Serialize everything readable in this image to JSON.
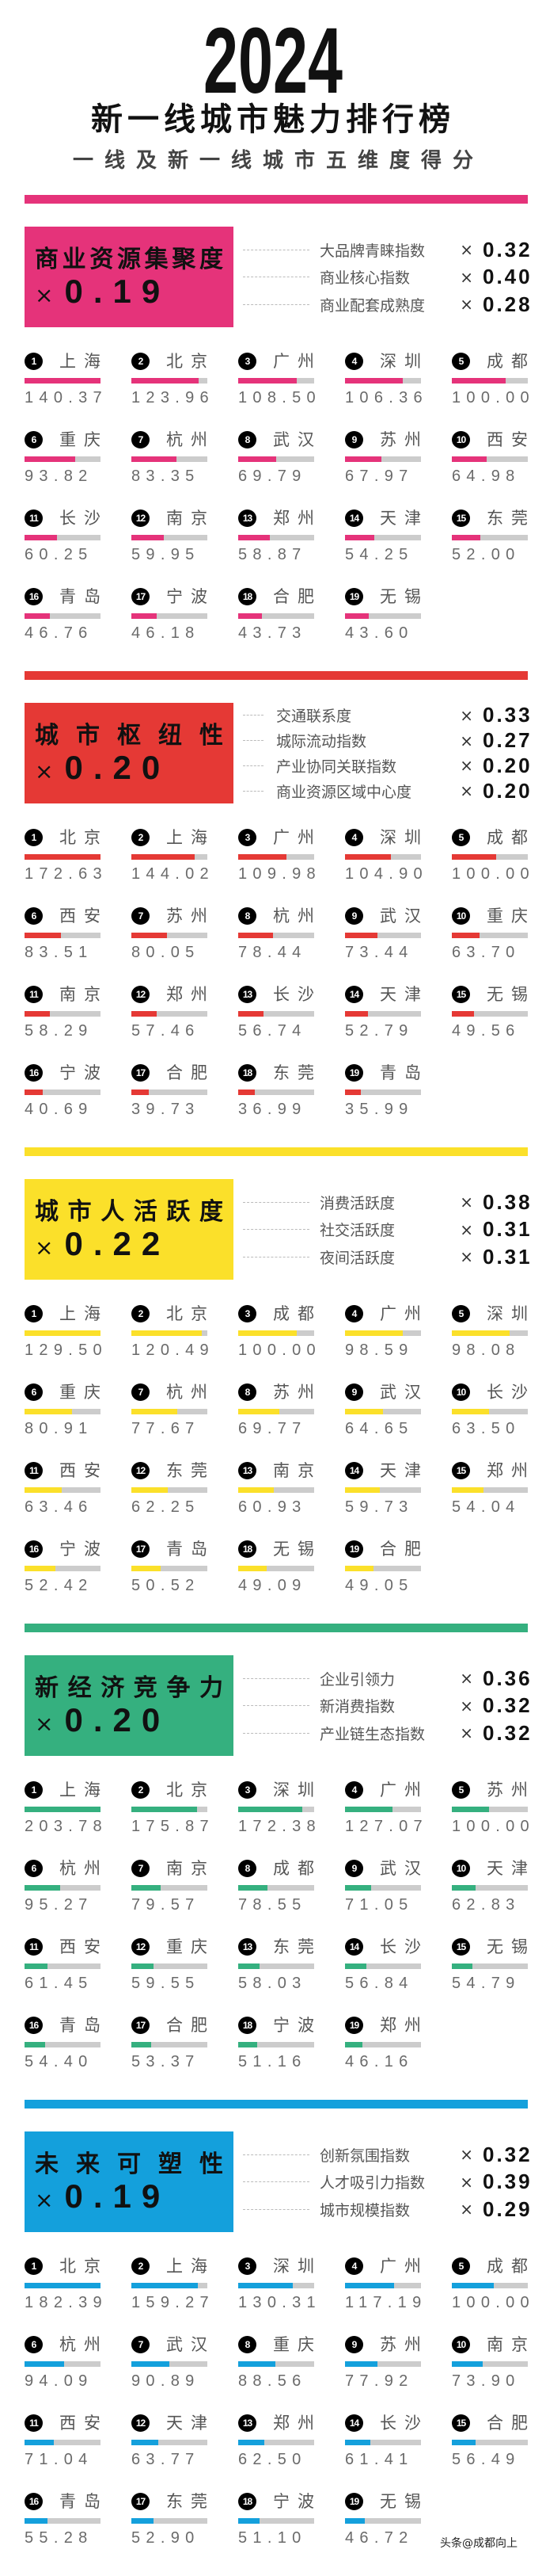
{
  "header": {
    "year": "2024",
    "title": "新一线城市魅力排行榜",
    "subtitle": "一线及新一线城市五维度得分"
  },
  "sections": [
    {
      "title": "商业资源集聚度",
      "weight": "0.19",
      "color": "#E5337A",
      "items": [
        {
          "label": "大品牌青睐指数",
          "weight": "0.32"
        },
        {
          "label": "商业核心指数",
          "weight": "0.40"
        },
        {
          "label": "商业配套成熟度",
          "weight": "0.28"
        }
      ],
      "cities": [
        {
          "rank": "1",
          "name": "上海",
          "score": "140.37"
        },
        {
          "rank": "2",
          "name": "北京",
          "score": "123.96"
        },
        {
          "rank": "3",
          "name": "广州",
          "score": "108.50"
        },
        {
          "rank": "4",
          "name": "深圳",
          "score": "106.36"
        },
        {
          "rank": "5",
          "name": "成都",
          "score": "100.00"
        },
        {
          "rank": "6",
          "name": "重庆",
          "score": "93.82"
        },
        {
          "rank": "7",
          "name": "杭州",
          "score": "83.35"
        },
        {
          "rank": "8",
          "name": "武汉",
          "score": "69.79"
        },
        {
          "rank": "9",
          "name": "苏州",
          "score": "67.97"
        },
        {
          "rank": "10",
          "name": "西安",
          "score": "64.98"
        },
        {
          "rank": "11",
          "name": "长沙",
          "score": "60.25"
        },
        {
          "rank": "12",
          "name": "南京",
          "score": "59.95"
        },
        {
          "rank": "13",
          "name": "郑州",
          "score": "58.87"
        },
        {
          "rank": "14",
          "name": "天津",
          "score": "54.25"
        },
        {
          "rank": "15",
          "name": "东莞",
          "score": "52.00"
        },
        {
          "rank": "16",
          "name": "青岛",
          "score": "46.76"
        },
        {
          "rank": "17",
          "name": "宁波",
          "score": "46.18"
        },
        {
          "rank": "18",
          "name": "合肥",
          "score": "43.73"
        },
        {
          "rank": "19",
          "name": "无锡",
          "score": "43.60"
        }
      ]
    },
    {
      "title": "城市枢纽性",
      "weight": "0.20",
      "color": "#E53935",
      "items": [
        {
          "label": "交通联系度",
          "weight": "0.33"
        },
        {
          "label": "城际流动指数",
          "weight": "0.27"
        },
        {
          "label": "产业协同关联指数",
          "weight": "0.20"
        },
        {
          "label": "商业资源区域中心度",
          "weight": "0.20"
        }
      ],
      "cities": [
        {
          "rank": "1",
          "name": "北京",
          "score": "172.63"
        },
        {
          "rank": "2",
          "name": "上海",
          "score": "144.02"
        },
        {
          "rank": "3",
          "name": "广州",
          "score": "109.98"
        },
        {
          "rank": "4",
          "name": "深圳",
          "score": "104.90"
        },
        {
          "rank": "5",
          "name": "成都",
          "score": "100.00"
        },
        {
          "rank": "6",
          "name": "西安",
          "score": "83.51"
        },
        {
          "rank": "7",
          "name": "苏州",
          "score": "80.05"
        },
        {
          "rank": "8",
          "name": "杭州",
          "score": "78.44"
        },
        {
          "rank": "9",
          "name": "武汉",
          "score": "73.44"
        },
        {
          "rank": "10",
          "name": "重庆",
          "score": "63.70"
        },
        {
          "rank": "11",
          "name": "南京",
          "score": "58.29"
        },
        {
          "rank": "12",
          "name": "郑州",
          "score": "57.46"
        },
        {
          "rank": "13",
          "name": "长沙",
          "score": "56.74"
        },
        {
          "rank": "14",
          "name": "天津",
          "score": "52.79"
        },
        {
          "rank": "15",
          "name": "无锡",
          "score": "49.56"
        },
        {
          "rank": "16",
          "name": "宁波",
          "score": "40.69"
        },
        {
          "rank": "17",
          "name": "合肥",
          "score": "39.73"
        },
        {
          "rank": "18",
          "name": "东莞",
          "score": "36.99"
        },
        {
          "rank": "19",
          "name": "青岛",
          "score": "35.99"
        }
      ]
    },
    {
      "title": "城市人活跃度",
      "weight": "0.22",
      "color": "#FBE02A",
      "items": [
        {
          "label": "消费活跃度",
          "weight": "0.38"
        },
        {
          "label": "社交活跃度",
          "weight": "0.31"
        },
        {
          "label": "夜间活跃度",
          "weight": "0.31"
        }
      ],
      "cities": [
        {
          "rank": "1",
          "name": "上海",
          "score": "129.50"
        },
        {
          "rank": "2",
          "name": "北京",
          "score": "120.49"
        },
        {
          "rank": "3",
          "name": "成都",
          "score": "100.00"
        },
        {
          "rank": "4",
          "name": "广州",
          "score": "98.59"
        },
        {
          "rank": "5",
          "name": "深圳",
          "score": "98.08"
        },
        {
          "rank": "6",
          "name": "重庆",
          "score": "80.91"
        },
        {
          "rank": "7",
          "name": "杭州",
          "score": "77.67"
        },
        {
          "rank": "8",
          "name": "苏州",
          "score": "69.77"
        },
        {
          "rank": "9",
          "name": "武汉",
          "score": "64.65"
        },
        {
          "rank": "10",
          "name": "长沙",
          "score": "63.50"
        },
        {
          "rank": "11",
          "name": "西安",
          "score": "63.46"
        },
        {
          "rank": "12",
          "name": "东莞",
          "score": "62.25"
        },
        {
          "rank": "13",
          "name": "南京",
          "score": "60.93"
        },
        {
          "rank": "14",
          "name": "天津",
          "score": "59.73"
        },
        {
          "rank": "15",
          "name": "郑州",
          "score": "54.04"
        },
        {
          "rank": "16",
          "name": "宁波",
          "score": "52.42"
        },
        {
          "rank": "17",
          "name": "青岛",
          "score": "50.52"
        },
        {
          "rank": "18",
          "name": "无锡",
          "score": "49.09"
        },
        {
          "rank": "19",
          "name": "合肥",
          "score": "49.05"
        }
      ]
    },
    {
      "title": "新经济竞争力",
      "weight": "0.20",
      "color": "#35B07F",
      "items": [
        {
          "label": "企业引领力",
          "weight": "0.36"
        },
        {
          "label": "新消费指数",
          "weight": "0.32"
        },
        {
          "label": "产业链生态指数",
          "weight": "0.32"
        }
      ],
      "cities": [
        {
          "rank": "1",
          "name": "上海",
          "score": "203.78"
        },
        {
          "rank": "2",
          "name": "北京",
          "score": "175.87"
        },
        {
          "rank": "3",
          "name": "深圳",
          "score": "172.38"
        },
        {
          "rank": "4",
          "name": "广州",
          "score": "127.07"
        },
        {
          "rank": "5",
          "name": "苏州",
          "score": "100.00"
        },
        {
          "rank": "6",
          "name": "杭州",
          "score": "95.27"
        },
        {
          "rank": "7",
          "name": "南京",
          "score": "79.57"
        },
        {
          "rank": "8",
          "name": "成都",
          "score": "78.55"
        },
        {
          "rank": "9",
          "name": "武汉",
          "score": "71.05"
        },
        {
          "rank": "10",
          "name": "天津",
          "score": "62.83"
        },
        {
          "rank": "11",
          "name": "西安",
          "score": "61.45"
        },
        {
          "rank": "12",
          "name": "重庆",
          "score": "59.55"
        },
        {
          "rank": "13",
          "name": "东莞",
          "score": "58.03"
        },
        {
          "rank": "14",
          "name": "长沙",
          "score": "56.84"
        },
        {
          "rank": "15",
          "name": "无锡",
          "score": "54.79"
        },
        {
          "rank": "16",
          "name": "青岛",
          "score": "54.40"
        },
        {
          "rank": "17",
          "name": "合肥",
          "score": "53.37"
        },
        {
          "rank": "18",
          "name": "宁波",
          "score": "51.16"
        },
        {
          "rank": "19",
          "name": "郑州",
          "score": "46.16"
        }
      ]
    },
    {
      "title": "未来可塑性",
      "weight": "0.19",
      "color": "#14A0DC",
      "items": [
        {
          "label": "创新氛围指数",
          "weight": "0.32"
        },
        {
          "label": "人才吸引力指数",
          "weight": "0.39"
        },
        {
          "label": "城市规模指数",
          "weight": "0.29"
        }
      ],
      "cities": [
        {
          "rank": "1",
          "name": "北京",
          "score": "182.39"
        },
        {
          "rank": "2",
          "name": "上海",
          "score": "159.27"
        },
        {
          "rank": "3",
          "name": "深圳",
          "score": "130.31"
        },
        {
          "rank": "4",
          "name": "广州",
          "score": "117.19"
        },
        {
          "rank": "5",
          "name": "成都",
          "score": "100.00"
        },
        {
          "rank": "6",
          "name": "杭州",
          "score": "94.09"
        },
        {
          "rank": "7",
          "name": "武汉",
          "score": "90.89"
        },
        {
          "rank": "8",
          "name": "重庆",
          "score": "88.56"
        },
        {
          "rank": "9",
          "name": "苏州",
          "score": "77.92"
        },
        {
          "rank": "10",
          "name": "南京",
          "score": "73.90"
        },
        {
          "rank": "11",
          "name": "西安",
          "score": "71.04"
        },
        {
          "rank": "12",
          "name": "天津",
          "score": "63.77"
        },
        {
          "rank": "13",
          "name": "郑州",
          "score": "62.50"
        },
        {
          "rank": "14",
          "name": "长沙",
          "score": "61.41"
        },
        {
          "rank": "15",
          "name": "合肥",
          "score": "56.49"
        },
        {
          "rank": "16",
          "name": "青岛",
          "score": "55.28"
        },
        {
          "rank": "17",
          "name": "东莞",
          "score": "52.90"
        },
        {
          "rank": "18",
          "name": "宁波",
          "score": "51.10"
        },
        {
          "rank": "19",
          "name": "无锡",
          "score": "46.72"
        }
      ]
    }
  ],
  "multiplier_symbol": "×",
  "track_color": "#CCCCCC",
  "watermark": "头条@成都向上"
}
